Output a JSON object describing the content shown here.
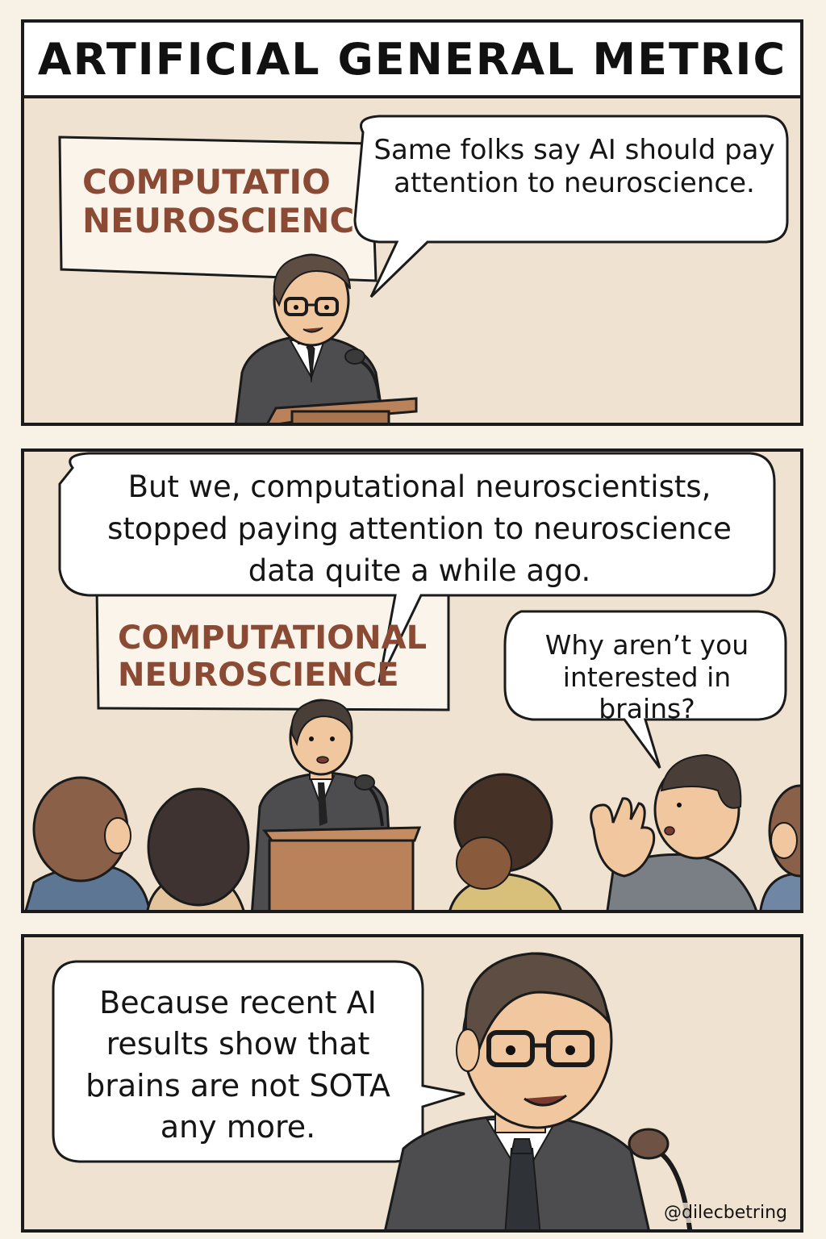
{
  "title": "ARTIFICIAL GENERAL METRIC",
  "panel1": {
    "sign": "COMPUTATIO\nNEUROSCIENC",
    "speech": "Same folks say AI should pay attention to neuroscience."
  },
  "panel2": {
    "sign": "COMPUTATIONAL\nNEUROSCIENCE",
    "speaker_speech": "But we, computational neuroscientists, stopped paying attention to neuroscience data quite a while ago.",
    "audience_speech": "Why aren’t you interested in brains?"
  },
  "panel3": {
    "speech": "Because recent AI results show that brains are not SOTA any more.",
    "credit": "@dilecbetring"
  },
  "colors": {
    "background": "#efe2d0",
    "sign_text": "#8a4a34",
    "suit": "#4d4d4f",
    "podium": "#b9825a"
  }
}
